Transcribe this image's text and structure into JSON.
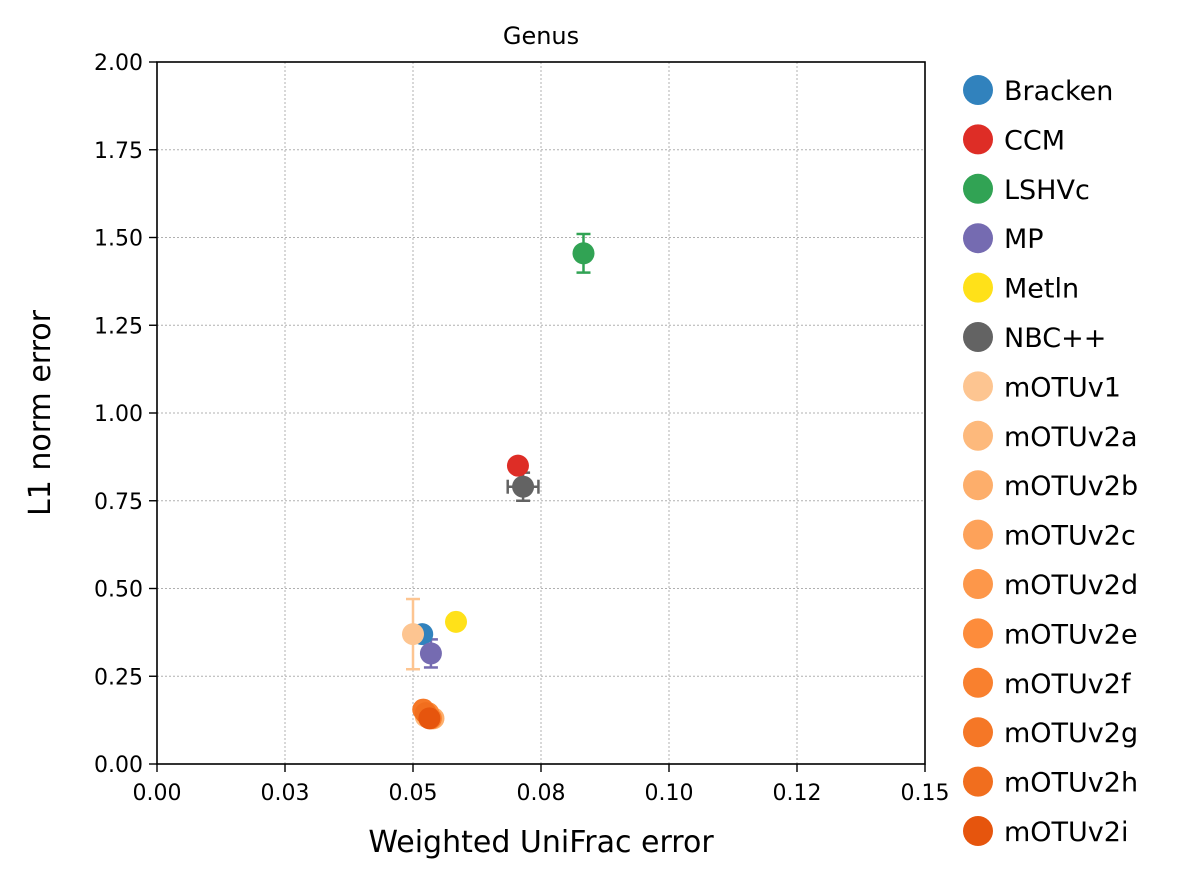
{
  "chart_data": {
    "type": "scatter",
    "title": "Genus",
    "xlabel": "Weighted UniFrac error",
    "ylabel": "L1 norm error",
    "xlim": [
      0,
      0.15
    ],
    "ylim": [
      0,
      2.0
    ],
    "xticks": [
      0,
      0.025,
      0.05,
      0.075,
      0.1,
      0.125,
      0.15
    ],
    "xtick_labels": [
      "0.00",
      "0.03",
      "0.05",
      "0.08",
      "0.10",
      "0.12",
      "0.15"
    ],
    "yticks": [
      0,
      0.25,
      0.5,
      0.75,
      1.0,
      1.25,
      1.5,
      1.75,
      2.0
    ],
    "ytick_labels": [
      "0.00",
      "0.25",
      "0.50",
      "0.75",
      "1.00",
      "1.25",
      "1.50",
      "1.75",
      "2.00"
    ],
    "grid": true,
    "legend_position": "outside-right",
    "series": [
      {
        "name": "Bracken",
        "color": "#3182bd",
        "x": 0.0518,
        "y": 0.37,
        "xerr": 0.0,
        "yerr": 0.0
      },
      {
        "name": "CCM",
        "color": "#de2d26",
        "x": 0.0705,
        "y": 0.85,
        "xerr": 0.0,
        "yerr": 0.0
      },
      {
        "name": "LSHVc",
        "color": "#31a354",
        "x": 0.0833,
        "y": 1.455,
        "xerr": 0.0,
        "yerr": 0.055
      },
      {
        "name": "MP",
        "color": "#756bb1",
        "x": 0.0535,
        "y": 0.315,
        "xerr": 0.0,
        "yerr": 0.04
      },
      {
        "name": "Metln",
        "color": "#ffe119",
        "x": 0.0584,
        "y": 0.405,
        "xerr": 0.0,
        "yerr": 0.0
      },
      {
        "name": "NBC++",
        "color": "#636363",
        "x": 0.0715,
        "y": 0.79,
        "xerr": 0.003,
        "yerr": 0.04
      },
      {
        "name": "mOTUv1",
        "color": "#fdc591",
        "x": 0.05,
        "y": 0.37,
        "xerr": 0.0,
        "yerr": 0.1
      },
      {
        "name": "mOTUv2a",
        "color": "#fdb97c",
        "x": 0.0525,
        "y": 0.135,
        "xerr": 0.0,
        "yerr": 0.0
      },
      {
        "name": "mOTUv2b",
        "color": "#fdae6b",
        "x": 0.054,
        "y": 0.13,
        "xerr": 0.0,
        "yerr": 0.0
      },
      {
        "name": "mOTUv2c",
        "color": "#fda25a",
        "x": 0.0528,
        "y": 0.14,
        "xerr": 0.0,
        "yerr": 0.0
      },
      {
        "name": "mOTUv2d",
        "color": "#fd974a",
        "x": 0.0522,
        "y": 0.15,
        "xerr": 0.0,
        "yerr": 0.0
      },
      {
        "name": "mOTUv2e",
        "color": "#fd8c3b",
        "x": 0.053,
        "y": 0.145,
        "xerr": 0.0,
        "yerr": 0.0
      },
      {
        "name": "mOTUv2f",
        "color": "#f9802e",
        "x": 0.0535,
        "y": 0.13,
        "xerr": 0.0,
        "yerr": 0.0
      },
      {
        "name": "mOTUv2g",
        "color": "#f57726",
        "x": 0.052,
        "y": 0.155,
        "xerr": 0.0,
        "yerr": 0.0
      },
      {
        "name": "mOTUv2h",
        "color": "#f16e1e",
        "x": 0.0525,
        "y": 0.145,
        "xerr": 0.0,
        "yerr": 0.0
      },
      {
        "name": "mOTUv2i",
        "color": "#e6550d",
        "x": 0.0532,
        "y": 0.13,
        "xerr": 0.0,
        "yerr": 0.0
      }
    ]
  }
}
